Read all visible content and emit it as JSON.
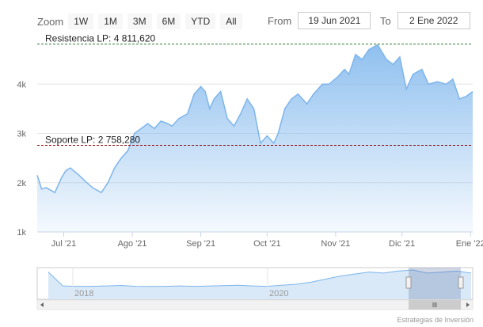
{
  "toolbar": {
    "zoom_label": "Zoom",
    "buttons": [
      "1W",
      "1M",
      "3M",
      "6M",
      "YTD",
      "All"
    ],
    "from_label": "From",
    "from_value": "19 Jun 2021",
    "to_label": "To",
    "to_value": "2 Ene 2022"
  },
  "credit": "Estrategias de Inversión",
  "colors": {
    "line": "#7cb5ec",
    "fill_top": "#7cb5ec",
    "resistance": "#2e7d32",
    "support": "#8b0000"
  },
  "chart_data": {
    "type": "area",
    "xlabels": [
      "Jul '21",
      "Ago '21",
      "Sep '21",
      "Oct '21",
      "Nov '21",
      "Dic '21",
      "Ene '22"
    ],
    "ylabels": [
      "1k",
      "2k",
      "3k",
      "4k"
    ],
    "yticks": [
      1000,
      2000,
      3000,
      4000
    ],
    "ylim": [
      1000,
      5000
    ],
    "resistance": {
      "label": "Resistencia LP: 4 811,620",
      "value": 4811.62
    },
    "support": {
      "label": "Soporte LP: 2 758,280",
      "value": 2758.28
    },
    "series": [
      {
        "x": [
          "2021-06-19",
          "2021-06-21",
          "2021-06-23",
          "2021-06-27",
          "2021-06-30",
          "2021-07-02",
          "2021-07-04",
          "2021-07-08",
          "2021-07-11",
          "2021-07-14",
          "2021-07-16",
          "2021-07-18",
          "2021-07-21",
          "2021-07-24",
          "2021-07-27",
          "2021-07-30",
          "2021-08-02",
          "2021-08-05",
          "2021-08-08",
          "2021-08-11",
          "2021-08-14",
          "2021-08-17",
          "2021-08-19",
          "2021-08-22",
          "2021-08-26",
          "2021-08-29",
          "2021-09-01",
          "2021-09-03",
          "2021-09-05",
          "2021-09-07",
          "2021-09-10",
          "2021-09-13",
          "2021-09-16",
          "2021-09-19",
          "2021-09-22",
          "2021-09-25",
          "2021-09-28",
          "2021-10-01",
          "2021-10-04",
          "2021-10-06",
          "2021-10-09",
          "2021-10-12",
          "2021-10-15",
          "2021-10-19",
          "2021-10-22",
          "2021-10-26",
          "2021-10-29",
          "2021-11-02",
          "2021-11-05",
          "2021-11-07",
          "2021-11-10",
          "2021-11-13",
          "2021-11-16",
          "2021-11-20",
          "2021-11-24",
          "2021-11-27",
          "2021-11-30",
          "2021-12-03",
          "2021-12-06",
          "2021-12-10",
          "2021-12-13",
          "2021-12-17",
          "2021-12-21",
          "2021-12-24",
          "2021-12-27",
          "2021-12-30",
          "2022-01-02"
        ],
        "y": [
          2150,
          1870,
          1900,
          1800,
          2100,
          2250,
          2300,
          2150,
          2020,
          1900,
          1850,
          1800,
          2000,
          2300,
          2500,
          2650,
          3000,
          3100,
          3200,
          3100,
          3250,
          3200,
          3150,
          3300,
          3400,
          3800,
          3950,
          3850,
          3500,
          3700,
          3850,
          3300,
          3150,
          3400,
          3700,
          3500,
          2800,
          2950,
          2800,
          3000,
          3500,
          3700,
          3800,
          3600,
          3800,
          4000,
          4000,
          4150,
          4300,
          4200,
          4600,
          4500,
          4700,
          4800,
          4500,
          4400,
          4550,
          3900,
          4200,
          4300,
          4000,
          4050,
          4000,
          4100,
          3700,
          3750,
          3850
        ]
      }
    ]
  },
  "navigator": {
    "xlabels": [
      "2018",
      "2020"
    ],
    "y": [
      1300,
      620,
      600,
      600,
      620,
      640,
      600,
      590,
      600,
      620,
      600,
      610,
      630,
      650,
      620,
      600,
      650,
      700,
      800,
      950,
      1100,
      1200,
      1300,
      1250,
      1350,
      1400,
      1250,
      1300,
      1350,
      1250
    ]
  }
}
